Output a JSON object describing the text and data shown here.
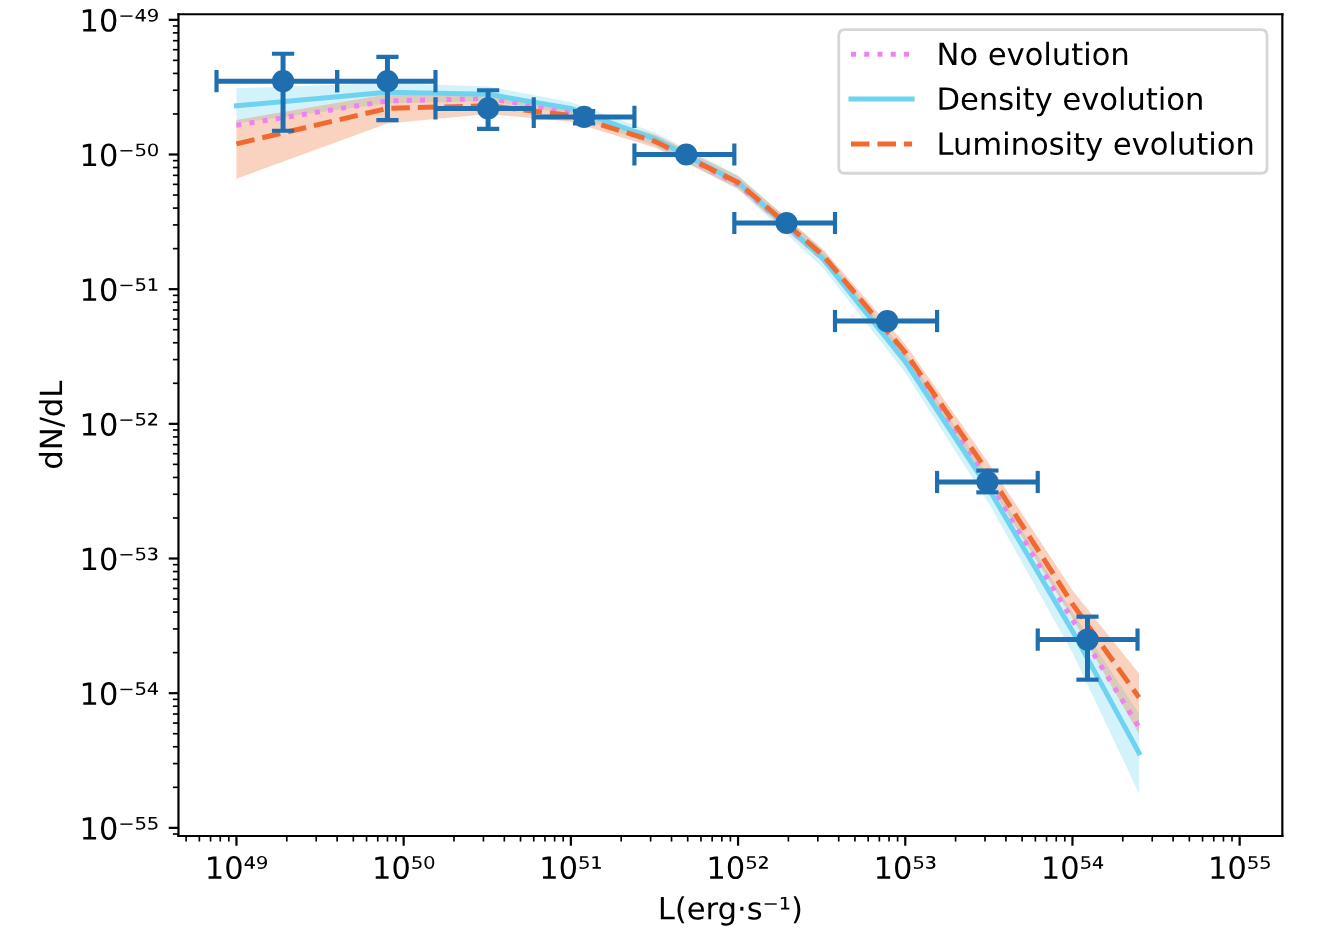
{
  "chart_data": {
    "type": "line",
    "xlabel": "L(erg·s⁻¹)",
    "ylabel": "dN/dL",
    "log": "xy",
    "legend": "top right",
    "grid": false,
    "xlim": [
      4.5e+48,
      1.8e+55
    ],
    "ylim": [
      8.7e-56,
      1.1e-49
    ],
    "xticks": [
      {
        "value": 1e+49,
        "label": "10⁴⁹"
      },
      {
        "value": 1e+50,
        "label": "10⁵⁰"
      },
      {
        "value": 1e+51,
        "label": "10⁵¹"
      },
      {
        "value": 1e+52,
        "label": "10⁵²"
      },
      {
        "value": 1e+53,
        "label": "10⁵³"
      },
      {
        "value": 1e+54,
        "label": "10⁵⁴"
      },
      {
        "value": 1e+55,
        "label": "10⁵⁵"
      }
    ],
    "yticks": [
      {
        "value": 1e-55,
        "label": "10⁻⁵⁵"
      },
      {
        "value": 1e-54,
        "label": "10⁻⁵⁴"
      },
      {
        "value": 1e-53,
        "label": "10⁻⁵³"
      },
      {
        "value": 1e-52,
        "label": "10⁻⁵²"
      },
      {
        "value": 1e-51,
        "label": "10⁻⁵¹"
      },
      {
        "value": 1e-50,
        "label": "10⁻⁵⁰"
      },
      {
        "value": 1e-49,
        "label": "10⁻⁴⁹"
      }
    ],
    "series": [
      {
        "name": "No evolution",
        "line_style": "dotted",
        "color": "#ee82ee",
        "x": [
          1e+49,
          8e+49,
          3.2e+50,
          1e+51,
          3.2e+51,
          1e+52,
          3.2e+52,
          1e+53,
          3.2e+53,
          1e+54,
          2.5e+54
        ],
        "values": [
          1.65e-50,
          2.5e-50,
          2.6e-50,
          2.1e-50,
          1.25e-50,
          6e-51,
          1.7e-51,
          3.1e-52,
          3.6e-53,
          3.5e-54,
          5.6e-55
        ]
      },
      {
        "name": "Density evolution",
        "line_style": "solid",
        "color": "#6dd3f0",
        "x": [
          1e+49,
          8e+49,
          3.2e+50,
          1e+51,
          3.2e+51,
          1e+52,
          3.2e+52,
          1e+53,
          3.2e+53,
          1e+54,
          2.5e+54
        ],
        "values": [
          2.3e-50,
          2.9e-50,
          2.8e-50,
          2.2e-50,
          1.3e-50,
          6.2e-51,
          1.7e-51,
          2.9e-52,
          3.2e-53,
          2.9e-54,
          3.6e-55
        ],
        "lower": [
          1.7e-50,
          2.4e-50,
          2.5e-50,
          2e-50,
          1.15e-50,
          5.5e-51,
          1.45e-51,
          2.4e-52,
          2.5e-53,
          2e-54,
          1.8e-55
        ],
        "upper": [
          3.1e-50,
          3.4e-50,
          3.2e-50,
          2.45e-50,
          1.45e-50,
          7e-51,
          1.95e-51,
          3.4e-52,
          4e-53,
          4e-54,
          7e-55
        ]
      },
      {
        "name": "Luminosity evolution",
        "line_style": "dashed",
        "color": "#f06a30",
        "x": [
          1e+49,
          8e+49,
          3.2e+50,
          1e+51,
          3.2e+51,
          1e+52,
          3.2e+52,
          1e+53,
          3.2e+53,
          1e+54,
          2.5e+54
        ],
        "values": [
          1.2e-50,
          2.2e-50,
          2.3e-50,
          1.95e-50,
          1.25e-50,
          6.2e-51,
          1.8e-51,
          3.4e-52,
          4.2e-53,
          4.6e-54,
          9.3e-55
        ],
        "lower": [
          6.6e-51,
          1.7e-50,
          2e-50,
          1.75e-50,
          1.12e-50,
          5.6e-51,
          1.6e-51,
          3e-52,
          3.5e-53,
          3.6e-54,
          5e-55
        ],
        "upper": [
          1.8e-50,
          2.8e-50,
          2.7e-50,
          2.15e-50,
          1.4e-50,
          6.9e-51,
          2e-51,
          3.9e-52,
          5e-53,
          5.8e-54,
          1.4e-54
        ]
      },
      {
        "type": "scatter",
        "marker": "circle",
        "color": "#1f6fb0",
        "x": [
          1.9e+49,
          8e+49,
          3.2e+50,
          1.2e+51,
          4.9e+51,
          1.95e+52,
          7.8e+52,
          3.1e+53,
          1.23e+54
        ],
        "values": [
          3.5e-50,
          3.5e-50,
          2.2e-50,
          1.9e-50,
          1e-50,
          3.1e-51,
          5.8e-52,
          3.7e-53,
          2.5e-54
        ],
        "errors": [
          [
            1.5e-50,
            5.6e-50
          ],
          [
            1.8e-50,
            5.3e-50
          ],
          [
            1.55e-50,
            3e-50
          ],
          [
            1.7e-50,
            2.1e-50
          ],
          null,
          null,
          null,
          [
            3.1e-53,
            4.5e-53
          ],
          [
            1.26e-54,
            3.7e-54
          ]
        ],
        "xerrors": [
          [
            7.6e+48,
            4e+49
          ],
          [
            4e+49,
            1.55e+50
          ],
          [
            1.55e+50,
            6e+50
          ],
          [
            6e+50,
            2.4e+51
          ],
          [
            2.4e+51,
            9.5e+51
          ],
          [
            9.5e+51,
            3.8e+52
          ],
          [
            3.8e+52,
            1.55e+53
          ],
          [
            1.55e+53,
            6.2e+53
          ],
          [
            6.2e+53,
            2.45e+54
          ]
        ]
      }
    ]
  }
}
